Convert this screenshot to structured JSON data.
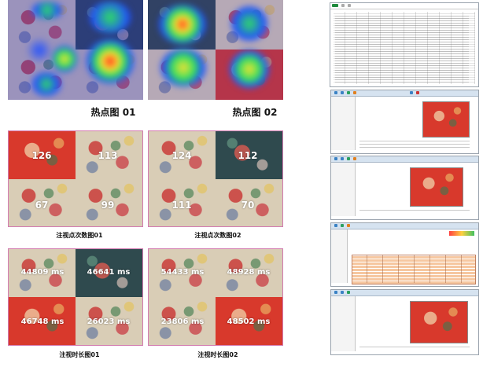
{
  "colors": {
    "heat_hot": "#ff2020",
    "heat_warm": "#ffe030",
    "heat_mid": "#30e060",
    "heat_cool": "#2050ff",
    "tile_border": "#d27ab0"
  },
  "heatmaps": [
    {
      "label": "热点图 01"
    },
    {
      "label": "热点图 02"
    }
  ],
  "fixation_counts": [
    {
      "caption": "注视点次数图01",
      "values": [
        "126",
        "113",
        "67",
        "99"
      ]
    },
    {
      "caption": "注视点次数图02",
      "values": [
        "124",
        "112",
        "111",
        "70"
      ]
    }
  ],
  "fixation_durations": [
    {
      "caption": "注视时长图01",
      "values": [
        "44809 ms",
        "46641 ms",
        "46748 ms",
        "26023 ms"
      ]
    },
    {
      "caption": "注视时长图02",
      "values": [
        "54433 ms",
        "48928 ms",
        "23806 ms",
        "48502 ms"
      ]
    }
  ],
  "software_screens": {
    "icons": [
      "toolbar-icon",
      "stimulus-thumbnail-icon",
      "tree-view-icon",
      "data-grid-icon"
    ]
  }
}
